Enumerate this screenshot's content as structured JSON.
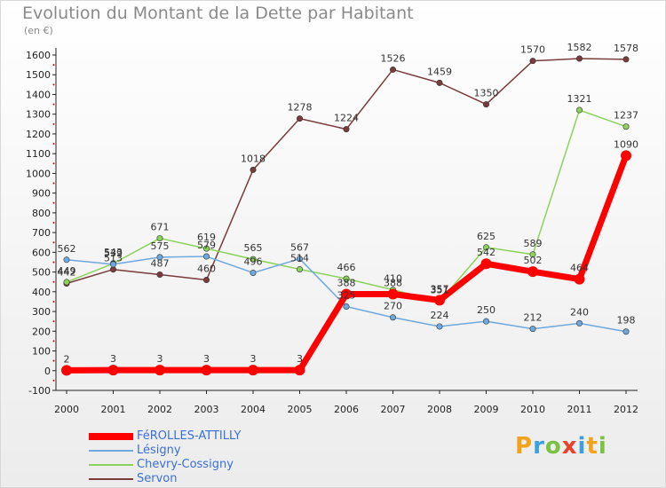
{
  "title": "Evolution du Montant de la Dette par Habitant",
  "subtitle": "(en €)",
  "logo_text": "Proxiti",
  "chart_data": {
    "type": "line",
    "title": "Evolution du Montant de la Dette par Habitant",
    "ylabel": "(en €)",
    "ylim": [
      -100,
      1600
    ],
    "y_ticks": [
      -100,
      0,
      100,
      200,
      300,
      400,
      500,
      600,
      700,
      800,
      900,
      1000,
      1100,
      1200,
      1300,
      1400,
      1500,
      1600
    ],
    "grid": false,
    "legend_position": "bottom-left",
    "x": [
      "2000",
      "2001",
      "2002",
      "2003",
      "2004",
      "2005",
      "2006",
      "2007",
      "2008",
      "2009",
      "2010",
      "2011",
      "2012"
    ],
    "series": [
      {
        "name": "FéROLLES-ATTILLY",
        "color": "#ff0000",
        "width": 7,
        "values": [
          2,
          3,
          3,
          3,
          3,
          3,
          388,
          388,
          357,
          542,
          502,
          464,
          1090
        ],
        "labels": [
          "2",
          "3",
          "3",
          "3",
          "3",
          "3",
          "388",
          "388",
          "357",
          "542",
          "502",
          "464",
          "1090"
        ]
      },
      {
        "name": "Lésigny",
        "color": "#6fa8dc",
        "width": 1.5,
        "values": [
          562,
          539,
          575,
          579,
          496,
          567,
          325,
          270,
          224,
          250,
          212,
          240,
          198
        ],
        "labels": [
          "562",
          "539",
          "575",
          "579",
          "496",
          "567",
          "325",
          "270",
          "224",
          "250",
          "212",
          "240",
          "198"
        ]
      },
      {
        "name": "Chevry-Cossigny",
        "color": "#8bd25b",
        "width": 1.5,
        "values": [
          449,
          543,
          671,
          619,
          565,
          514,
          466,
          410,
          351,
          625,
          589,
          1321,
          1237
        ],
        "labels": [
          "449",
          "543",
          "671",
          "619",
          "565",
          "514",
          "466",
          "410",
          "351",
          "625",
          "589",
          "1321",
          "1237"
        ]
      },
      {
        "name": "Servon",
        "color": "#7a3b3b",
        "width": 1.5,
        "values": [
          442,
          513,
          487,
          460,
          1018,
          1278,
          1224,
          1526,
          1459,
          1350,
          1570,
          1582,
          1578
        ],
        "labels": [
          "442",
          "513",
          "487",
          "460",
          "1018",
          "1278",
          "1224",
          "1526",
          "1459",
          "1350",
          "1570",
          "1582",
          "1578"
        ]
      }
    ]
  }
}
